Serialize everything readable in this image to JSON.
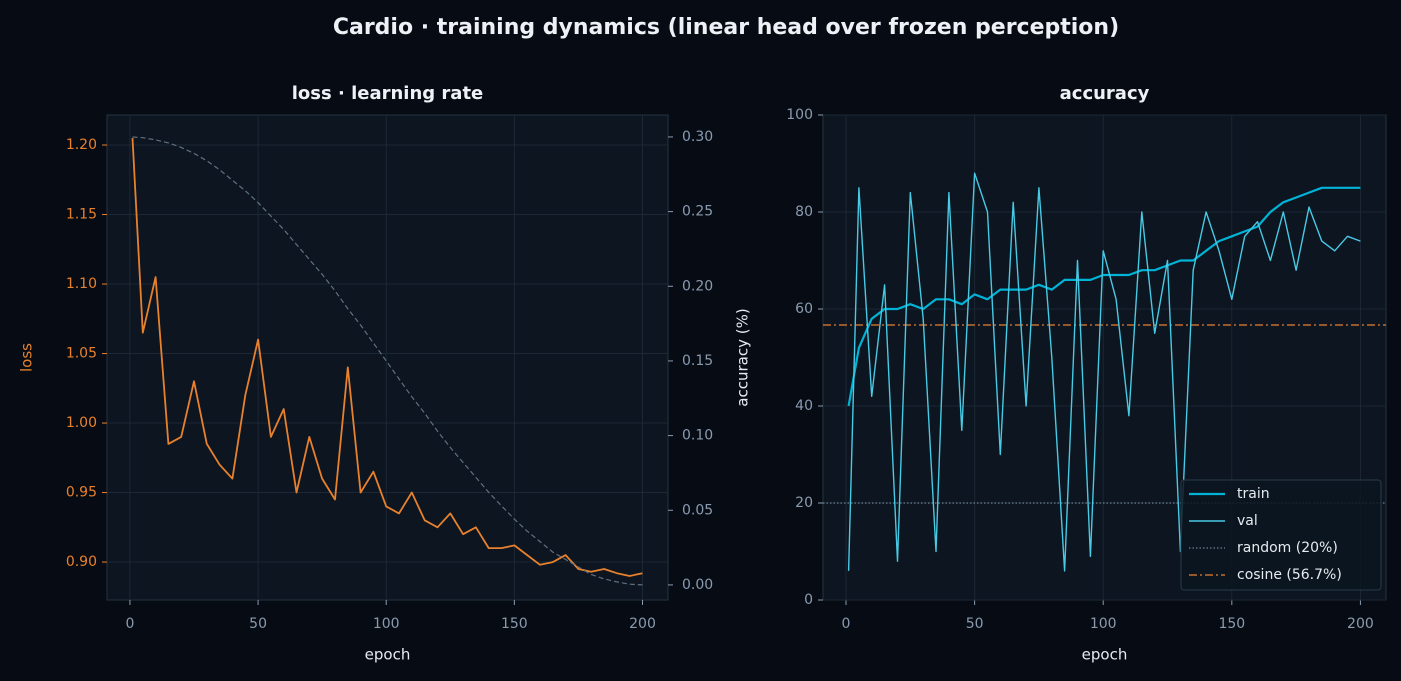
{
  "title": "Cardio · training dynamics (linear head over frozen perception)",
  "chart_data": [
    {
      "type": "line",
      "title": "loss · learning rate",
      "xlabel": "epoch",
      "ylabel": "loss",
      "ylabel_color": "#e8812e",
      "x": [
        1,
        5,
        10,
        15,
        20,
        25,
        30,
        35,
        40,
        45,
        50,
        55,
        60,
        65,
        70,
        75,
        80,
        85,
        90,
        95,
        100,
        105,
        110,
        115,
        120,
        125,
        130,
        135,
        140,
        145,
        150,
        155,
        160,
        165,
        170,
        175,
        180,
        185,
        190,
        195,
        200
      ],
      "series": [
        {
          "color": "#e8812e",
          "width": 1.8,
          "style": "solid",
          "values": [
            1.205,
            1.065,
            1.105,
            0.985,
            0.99,
            1.03,
            0.985,
            0.97,
            0.96,
            1.02,
            1.06,
            0.99,
            1.01,
            0.95,
            0.99,
            0.96,
            0.945,
            1.04,
            0.95,
            0.965,
            0.94,
            0.935,
            0.95,
            0.93,
            0.925,
            0.935,
            0.92,
            0.925,
            0.91,
            0.91,
            0.912,
            0.905,
            0.898,
            0.9,
            0.905,
            0.895,
            0.893,
            0.895,
            0.892,
            0.89,
            0.892
          ]
        },
        {
          "color": "#5f7080",
          "width": 1.2,
          "style": "dashed",
          "axis": "y2",
          "values": [
            0.3,
            0.2995,
            0.298,
            0.296,
            0.293,
            0.289,
            0.284,
            0.278,
            0.271,
            0.264,
            0.256,
            0.247,
            0.238,
            0.228,
            0.218,
            0.208,
            0.197,
            0.185,
            0.174,
            0.162,
            0.15,
            0.138,
            0.126,
            0.115,
            0.103,
            0.092,
            0.082,
            0.072,
            0.062,
            0.053,
            0.044,
            0.036,
            0.029,
            0.022,
            0.017,
            0.012,
            0.007,
            0.004,
            0.002,
            0.0005,
            0
          ]
        }
      ],
      "xlim": [
        -8.95,
        209.95
      ],
      "xticks": [
        0,
        50,
        100,
        150,
        200
      ],
      "ylim": [
        0.8727,
        1.2216
      ],
      "yticks": [
        {
          "value": 0.9,
          "label": "0.90"
        },
        0.95,
        {
          "value": 1.0,
          "label": "1.00"
        },
        1.05,
        {
          "value": 1.1,
          "label": "1.10"
        },
        1.15,
        {
          "value": 1.2,
          "label": "1.20"
        }
      ],
      "ytick_color": "#e8812e",
      "y2lim": [
        -0.0101,
        0.3147
      ],
      "y2ticks": [
        {
          "value": 0,
          "label": "0.00"
        },
        0.05,
        {
          "value": 0.1,
          "label": "0.10"
        },
        0.15,
        {
          "value": 0.2,
          "label": "0.20"
        },
        0.25,
        {
          "value": 0.3,
          "label": "0.30"
        }
      ],
      "grid": true
    },
    {
      "type": "line",
      "title": "accuracy",
      "xlabel": "epoch",
      "ylabel": "accuracy (%)",
      "legend": "lower right",
      "x": [
        1,
        5,
        10,
        15,
        20,
        25,
        30,
        35,
        40,
        45,
        50,
        55,
        60,
        65,
        70,
        75,
        80,
        85,
        90,
        95,
        100,
        105,
        110,
        115,
        120,
        125,
        130,
        135,
        140,
        145,
        150,
        155,
        160,
        165,
        170,
        175,
        180,
        185,
        190,
        195,
        200
      ],
      "series": [
        {
          "name": "train",
          "color": "#00b4d8",
          "width": 2.2,
          "style": "solid",
          "values": [
            40,
            52,
            58,
            60,
            60,
            61,
            60,
            62,
            62,
            61,
            63,
            62,
            64,
            64,
            64,
            65,
            64,
            66,
            66,
            66,
            67,
            67,
            67,
            68,
            68,
            69,
            70,
            70,
            72,
            74,
            75,
            76,
            77,
            80,
            82,
            83,
            84,
            85,
            85,
            85,
            85
          ]
        },
        {
          "name": "val",
          "color": "#48cae4",
          "width": 1.4,
          "style": "solid",
          "values": [
            6,
            85,
            42,
            65,
            8,
            84,
            58,
            10,
            84,
            35,
            88,
            80,
            30,
            82,
            40,
            85,
            50,
            6,
            70,
            9,
            72,
            62,
            38,
            80,
            55,
            70,
            10,
            68,
            80,
            72,
            62,
            75,
            78,
            70,
            80,
            68,
            81,
            74,
            72,
            75,
            74
          ]
        }
      ],
      "hlines": [
        {
          "value": 20,
          "label": "random (20%)",
          "color": "#6b7f90",
          "style": "dotted"
        },
        {
          "value": 56.7,
          "label": "cosine (56.7%)",
          "color": "#e8812e",
          "style": "dashdot"
        }
      ],
      "xlim": [
        -8.95,
        209.95
      ],
      "xticks": [
        0,
        50,
        100,
        150,
        200
      ],
      "ylim": [
        0,
        100
      ],
      "yticks": [
        0,
        20,
        40,
        60,
        80,
        100
      ],
      "grid": true
    }
  ]
}
